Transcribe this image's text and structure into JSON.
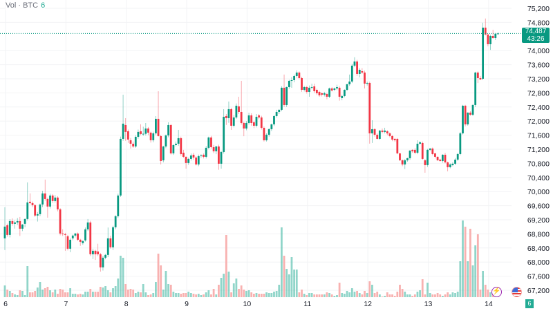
{
  "legend": {
    "label": "Vol · BTC",
    "value": "6"
  },
  "price_tag": {
    "price": "74,487",
    "countdown": "43:26"
  },
  "badge": "6",
  "colors": {
    "up": "#089981",
    "down": "#f23645",
    "up_volume": "#22ab94",
    "down_volume": "#f7a9a7",
    "grid": "#f2f3f5",
    "last_price_line": "#089981"
  },
  "icons": [
    "lightning-icon",
    "us-flag-icon"
  ],
  "chart_data": {
    "type": "candlestick",
    "title": "",
    "y_axis_side": "right",
    "ylim": [
      67000,
      75400
    ],
    "yticks": [
      "75,200",
      "74,800",
      "74,000",
      "73,600",
      "73,200",
      "72,800",
      "72,400",
      "72,000",
      "71,600",
      "71,200",
      "70,800",
      "70,400",
      "70,000",
      "69,600",
      "69,200",
      "68,800",
      "68,400",
      "68,000",
      "67,600",
      "67,200"
    ],
    "ytick_values": [
      75200,
      74800,
      74000,
      73600,
      73200,
      72800,
      72400,
      72000,
      71600,
      71200,
      70800,
      70400,
      70000,
      69600,
      69200,
      68800,
      68400,
      68000,
      67600,
      67200
    ],
    "xticks": [
      "6",
      "7",
      "8",
      "9",
      "10",
      "11",
      "12",
      "13",
      "14"
    ],
    "candles_per_day": 24,
    "grid": true,
    "last_price": 74487,
    "ohlc": [
      [
        68673,
        69555,
        68340,
        69006
      ],
      [
        69045,
        69090,
        68720,
        68771
      ],
      [
        68771,
        69220,
        68700,
        69163
      ],
      [
        69163,
        69240,
        69030,
        69085
      ],
      [
        69085,
        69180,
        68950,
        69124
      ],
      [
        69124,
        69250,
        69050,
        69163
      ],
      [
        69163,
        69280,
        68740,
        68947
      ],
      [
        68947,
        69080,
        68880,
        69065
      ],
      [
        69085,
        69240,
        68990,
        69222
      ],
      [
        69222,
        70260,
        69180,
        69692
      ],
      [
        69712,
        69950,
        69640,
        69673
      ],
      [
        69673,
        69720,
        69560,
        69614
      ],
      [
        69614,
        69650,
        69280,
        69320
      ],
      [
        69320,
        69420,
        69150,
        69359
      ],
      [
        69359,
        69660,
        69300,
        69634
      ],
      [
        69634,
        70020,
        69560,
        69947
      ],
      [
        69947,
        70340,
        69740,
        69790
      ],
      [
        69790,
        69830,
        69260,
        69575
      ],
      [
        69575,
        69940,
        69520,
        69888
      ],
      [
        69888,
        69930,
        69680,
        69732
      ],
      [
        69732,
        69900,
        69690,
        69830
      ],
      [
        69830,
        69870,
        69440,
        69496
      ],
      [
        69496,
        69530,
        68760,
        68810
      ],
      [
        68810,
        68930,
        68740,
        68791
      ],
      [
        68791,
        68830,
        68320,
        68771
      ],
      [
        68732,
        68770,
        68330,
        68379
      ],
      [
        68379,
        68680,
        68280,
        68634
      ],
      [
        68673,
        68780,
        68620,
        68752
      ],
      [
        68752,
        68830,
        68700,
        68810
      ],
      [
        68810,
        68840,
        68600,
        68634
      ],
      [
        68634,
        68660,
        68460,
        68575
      ],
      [
        68536,
        68620,
        68490,
        68595
      ],
      [
        68614,
        68980,
        68580,
        68928
      ],
      [
        68928,
        69222,
        68880,
        69124
      ],
      [
        69124,
        69170,
        68170,
        68222
      ],
      [
        68222,
        68380,
        68085,
        68320
      ],
      [
        68320,
        68350,
        68060,
        68222
      ],
      [
        68300,
        68520,
        68170,
        68222
      ],
      [
        68222,
        68260,
        67730,
        67850
      ],
      [
        67850,
        68180,
        67760,
        68124
      ],
      [
        68124,
        68230,
        68080,
        68203
      ],
      [
        68203,
        68980,
        68140,
        68673
      ],
      [
        68673,
        68750,
        68380,
        68419
      ],
      [
        68419,
        69030,
        68340,
        68987
      ],
      [
        68987,
        69330,
        68930,
        69300
      ],
      [
        69300,
        69940,
        69250,
        69888
      ],
      [
        69888,
        71560,
        69850,
        71495
      ],
      [
        71495,
        72750,
        71440,
        71927
      ],
      [
        71887,
        72083,
        71440,
        71692
      ],
      [
        71711,
        71760,
        71380,
        71476
      ],
      [
        71456,
        71520,
        71221,
        71358
      ],
      [
        71358,
        71420,
        71240,
        71280
      ],
      [
        71280,
        71600,
        71240,
        71554
      ],
      [
        71554,
        71760,
        71500,
        71692
      ],
      [
        71711,
        71910,
        71600,
        71633
      ],
      [
        71633,
        71840,
        71580,
        71640
      ],
      [
        71640,
        71946,
        71590,
        71790
      ],
      [
        71790,
        71830,
        71600,
        71672
      ],
      [
        71672,
        71700,
        71390,
        71456
      ],
      [
        71456,
        71700,
        71400,
        71652
      ],
      [
        71652,
        72142,
        71600,
        72064
      ],
      [
        72064,
        72848,
        71560,
        71574
      ],
      [
        71574,
        71610,
        70770,
        70868
      ],
      [
        70888,
        71300,
        70830,
        71280
      ],
      [
        71280,
        71620,
        71230,
        71593
      ],
      [
        71593,
        71965,
        71540,
        71887
      ],
      [
        71887,
        71920,
        71050,
        71084
      ],
      [
        71084,
        71340,
        71040,
        71319
      ],
      [
        71319,
        71420,
        71280,
        71358
      ],
      [
        71358,
        71750,
        71300,
        71515
      ],
      [
        71515,
        71560,
        71020,
        71064
      ],
      [
        71103,
        71182,
        70960,
        70986
      ],
      [
        70986,
        71000,
        70650,
        70810
      ],
      [
        70810,
        70960,
        70760,
        70927
      ],
      [
        70927,
        71080,
        70880,
        71025
      ],
      [
        71045,
        71100,
        70900,
        70966
      ],
      [
        70966,
        71000,
        70740,
        70770
      ],
      [
        70770,
        71050,
        70720,
        71005
      ],
      [
        71005,
        71060,
        70960,
        71025
      ],
      [
        71045,
        71080,
        70940,
        70986
      ],
      [
        70986,
        71290,
        70940,
        71241
      ],
      [
        71241,
        71560,
        71200,
        71535
      ],
      [
        71535,
        71580,
        71220,
        71260
      ],
      [
        71260,
        71320,
        71090,
        71143
      ],
      [
        71143,
        71300,
        71060,
        71280
      ],
      [
        71280,
        71330,
        70620,
        70790
      ],
      [
        70790,
        71150,
        70650,
        71123
      ],
      [
        71123,
        72338,
        71080,
        72122
      ],
      [
        72142,
        72200,
        71890,
        72083
      ],
      [
        72083,
        72555,
        71950,
        72338
      ],
      [
        72338,
        72380,
        71750,
        71868
      ],
      [
        71868,
        72170,
        71820,
        72103
      ],
      [
        72103,
        72500,
        72060,
        72436
      ],
      [
        72417,
        72690,
        72200,
        72259
      ],
      [
        72259,
        73142,
        71900,
        71946
      ],
      [
        71946,
        71980,
        71570,
        71790
      ],
      [
        71790,
        72000,
        71740,
        71946
      ],
      [
        71946,
        72240,
        71900,
        72162
      ],
      [
        72162,
        72220,
        71870,
        71946
      ],
      [
        71965,
        72010,
        71800,
        71868
      ],
      [
        71868,
        72200,
        71820,
        72122
      ],
      [
        72162,
        72200,
        72050,
        72103
      ],
      [
        72103,
        72150,
        71760,
        71809
      ],
      [
        71809,
        71850,
        71420,
        71456
      ],
      [
        71456,
        71650,
        71420,
        71613
      ],
      [
        71613,
        71800,
        71560,
        71770
      ],
      [
        71770,
        71930,
        71720,
        71907
      ],
      [
        71907,
        72170,
        71860,
        72142
      ],
      [
        72142,
        72320,
        72100,
        72259
      ],
      [
        72259,
        72340,
        72200,
        72319
      ],
      [
        72319,
        72990,
        72280,
        72946
      ],
      [
        72946,
        73320,
        72400,
        72456
      ],
      [
        72456,
        72980,
        72400,
        72965
      ],
      [
        72965,
        73170,
        72920,
        73142
      ],
      [
        73142,
        73250,
        72946,
        73161
      ],
      [
        73161,
        73320,
        73100,
        73279
      ],
      [
        73279,
        73440,
        73230,
        73377
      ],
      [
        73377,
        73410,
        73180,
        73220
      ],
      [
        73220,
        73260,
        72830,
        72887
      ],
      [
        72887,
        73000,
        72840,
        72965
      ],
      [
        72965,
        73000,
        72780,
        72828
      ],
      [
        72828,
        73010,
        72690,
        72946
      ],
      [
        72946,
        73060,
        72900,
        72965
      ],
      [
        72985,
        73060,
        72800,
        72848
      ],
      [
        72887,
        72920,
        72740,
        72789
      ],
      [
        72828,
        72860,
        72690,
        72730
      ],
      [
        72789,
        72810,
        72700,
        72750
      ],
      [
        72750,
        72830,
        72700,
        72789
      ],
      [
        72769,
        72800,
        72620,
        72691
      ],
      [
        72691,
        72950,
        72650,
        72926
      ],
      [
        72926,
        72960,
        72840,
        72867
      ],
      [
        72887,
        72950,
        72850,
        72926
      ],
      [
        72926,
        73030,
        72880,
        72965
      ],
      [
        72946,
        72990,
        72580,
        72691
      ],
      [
        72652,
        72750,
        72590,
        72711
      ],
      [
        72711,
        72900,
        72680,
        72887
      ],
      [
        72887,
        73060,
        72850,
        73044
      ],
      [
        73044,
        73320,
        73000,
        73122
      ],
      [
        73122,
        73620,
        73080,
        73573
      ],
      [
        73573,
        73810,
        73530,
        73691
      ],
      [
        73691,
        73740,
        73280,
        73338
      ],
      [
        73338,
        73500,
        73240,
        73455
      ],
      [
        73416,
        73500,
        73340,
        73377
      ],
      [
        73377,
        73430,
        72926,
        73063
      ],
      [
        73063,
        73120,
        73010,
        73083
      ],
      [
        73083,
        73120,
        71360,
        71652
      ],
      [
        71652,
        72024,
        71378,
        71770
      ],
      [
        71770,
        71800,
        71560,
        71613
      ],
      [
        71613,
        71650,
        71480,
        71495
      ],
      [
        71495,
        71750,
        71470,
        71731
      ],
      [
        71731,
        71790,
        71650,
        71692
      ],
      [
        71692,
        71810,
        71650,
        71731
      ],
      [
        71711,
        71740,
        71600,
        71652
      ],
      [
        71652,
        71680,
        71540,
        71574
      ],
      [
        71574,
        71600,
        71430,
        71476
      ],
      [
        71495,
        71520,
        71410,
        71456
      ],
      [
        71495,
        71520,
        71060,
        71084
      ],
      [
        71084,
        71100,
        70870,
        70888
      ],
      [
        70888,
        70910,
        70720,
        70770
      ],
      [
        70770,
        70920,
        70640,
        70888
      ],
      [
        70888,
        70960,
        70850,
        70947
      ],
      [
        70947,
        71180,
        70900,
        71162
      ],
      [
        71182,
        71200,
        71100,
        71143
      ],
      [
        71182,
        71230,
        71060,
        71103
      ],
      [
        71103,
        71456,
        71060,
        71358
      ],
      [
        71358,
        71430,
        71330,
        71398
      ],
      [
        71378,
        71420,
        70900,
        70927
      ],
      [
        70888,
        70920,
        70535,
        70751
      ],
      [
        70751,
        71210,
        70700,
        71182
      ],
      [
        71182,
        71240,
        71150,
        71221
      ],
      [
        71221,
        71250,
        71030,
        71064
      ],
      [
        71084,
        71100,
        70940,
        70986
      ],
      [
        70986,
        71000,
        70870,
        70888
      ],
      [
        70907,
        70930,
        70850,
        70868
      ],
      [
        70868,
        71060,
        70820,
        71045
      ],
      [
        71045,
        71100,
        70800,
        70829
      ],
      [
        70829,
        70850,
        70575,
        70692
      ],
      [
        70692,
        70800,
        70660,
        70770
      ],
      [
        70751,
        70830,
        70720,
        70790
      ],
      [
        70790,
        70950,
        70750,
        70907
      ],
      [
        70907,
        71100,
        70870,
        71064
      ],
      [
        71064,
        71690,
        71030,
        71652
      ],
      [
        71652,
        72460,
        71620,
        72436
      ],
      [
        72436,
        72460,
        71850,
        71907
      ],
      [
        71907,
        72250,
        71870,
        72240
      ],
      [
        72240,
        72280,
        72150,
        72181
      ],
      [
        72181,
        72480,
        72140,
        72456
      ],
      [
        72456,
        73400,
        72400,
        73377
      ],
      [
        73377,
        73410,
        73080,
        73220
      ],
      [
        73220,
        73280,
        73160,
        73181
      ],
      [
        73201,
        74790,
        73160,
        74651
      ],
      [
        74651,
        74910,
        74430,
        74455
      ],
      [
        74455,
        74470,
        74120,
        74181
      ],
      [
        74181,
        74450,
        74020,
        74416
      ],
      [
        74416,
        74590,
        74340,
        74357
      ],
      [
        74357,
        74500,
        74300,
        74475
      ],
      [
        74475,
        74520,
        74440,
        74487
      ]
    ],
    "volume_relative": [
      17,
      11,
      9,
      6,
      4,
      3,
      10,
      9,
      3,
      45,
      7,
      7,
      9,
      14,
      22,
      11,
      13,
      15,
      10,
      7,
      11,
      5,
      12,
      11,
      7,
      7,
      13,
      5,
      5,
      4,
      5,
      4,
      8,
      8,
      12,
      8,
      8,
      8,
      15,
      14,
      16,
      10,
      7,
      13,
      16,
      27,
      60,
      57,
      19,
      11,
      12,
      11,
      6,
      8,
      7,
      19,
      7,
      3,
      4,
      6,
      22,
      63,
      46,
      11,
      38,
      19,
      18,
      8,
      6,
      6,
      5,
      6,
      6,
      8,
      6,
      5,
      4,
      5,
      3,
      4,
      7,
      10,
      4,
      12,
      4,
      18,
      28,
      34,
      90,
      37,
      7,
      20,
      27,
      12,
      17,
      11,
      9,
      10,
      7,
      5,
      6,
      5,
      5,
      5,
      7,
      6,
      6,
      8,
      9,
      18,
      101,
      60,
      41,
      33,
      58,
      40,
      40,
      7,
      11,
      5,
      3,
      6,
      6,
      4,
      4,
      4,
      4,
      4,
      7,
      6,
      4,
      2,
      3,
      21,
      6,
      5,
      9,
      7,
      13,
      8,
      9,
      6,
      4,
      9,
      6,
      23,
      18,
      6,
      8,
      4,
      1,
      2,
      7,
      4,
      4,
      2,
      8,
      18,
      12,
      8,
      4,
      4,
      2,
      4,
      8,
      10,
      26,
      4,
      21,
      6,
      4,
      4,
      6,
      4,
      2,
      4,
      7,
      4,
      7,
      6,
      8,
      52,
      111,
      102,
      52,
      99,
      46,
      75,
      91,
      11,
      38,
      18,
      11,
      7,
      5,
      4,
      4
    ]
  }
}
